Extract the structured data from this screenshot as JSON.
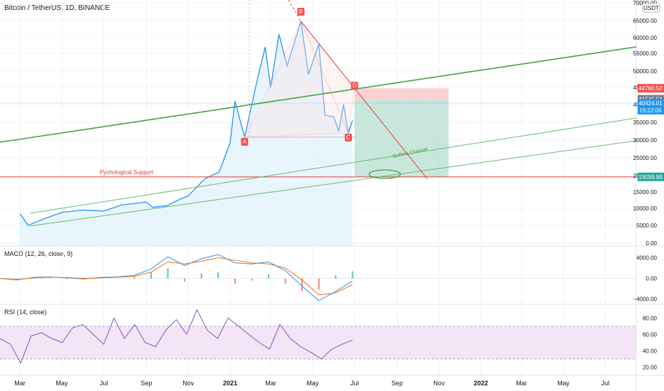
{
  "header": {
    "title": "Bitcoin / TetherUS, 1D, BINANCE",
    "currency": "USDT"
  },
  "colors": {
    "price": "#2196f3",
    "price_fill": "#e3f2fd",
    "pattern_line": "#f7a1a1",
    "trend_red": "#e53935",
    "trend_green": "#43a047",
    "channel_green": "#66bb6a",
    "support": "#e53935",
    "macd": "#2196f3",
    "signal": "#ff6d00",
    "hist_up": "#26a69a",
    "hist_down": "#ef5350",
    "rsi": "#7e57c2",
    "rsi_band": "#f3e5f5",
    "stop_zone": "#f8bdc0",
    "target_zone": "#a5d6c5"
  },
  "chart_data": [
    {
      "type": "line",
      "title": "Bitcoin / TetherUS, 1D, BINANCE",
      "y_scale": "log",
      "ylim": [
        0,
        70000
      ],
      "y_ticks": [
        0,
        5000,
        10000,
        15000,
        20000,
        25000,
        30000,
        35000,
        40000,
        45000,
        50000,
        55000,
        60000,
        65000,
        70000
      ],
      "y_tick_labels": [
        "0.00",
        "5000.00",
        "10000.00",
        "15000.00",
        "20000.00",
        "25000.00",
        "30000.00",
        "35000.00",
        "40000.00",
        "45000.00",
        "50000.00",
        "55000.00",
        "60000.00",
        "65000.00",
        "70000.00"
      ],
      "x_ticks": [
        "Mar",
        "May",
        "Jul",
        "Sep",
        "Nov",
        "2021",
        "Mar",
        "May",
        "Jul",
        "Sep",
        "Nov",
        "2022",
        "Mar",
        "May",
        "Jul"
      ],
      "series": [
        {
          "values": [
            [
              "2020-03-01",
              8500
            ],
            [
              "2020-03-13",
              5000
            ],
            [
              "2020-04-01",
              6600
            ],
            [
              "2020-05-01",
              8800
            ],
            [
              "2020-06-01",
              9500
            ],
            [
              "2020-07-01",
              9200
            ],
            [
              "2020-07-27",
              11000
            ],
            [
              "2020-09-01",
              11900
            ],
            [
              "2020-09-10",
              10300
            ],
            [
              "2020-10-01",
              10800
            ],
            [
              "2020-10-21",
              12900
            ],
            [
              "2020-11-01",
              13800
            ],
            [
              "2020-11-25",
              19000
            ],
            [
              "2020-12-16",
              21000
            ],
            [
              "2021-01-01",
              29300
            ],
            [
              "2021-01-08",
              41000
            ],
            [
              "2021-01-22",
              30800
            ],
            [
              "2021-02-08",
              46000
            ],
            [
              "2021-02-21",
              57000
            ],
            [
              "2021-03-01",
              45000
            ],
            [
              "2021-03-13",
              61000
            ],
            [
              "2021-03-25",
              51500
            ],
            [
              "2021-04-14",
              64800
            ],
            [
              "2021-04-25",
              49000
            ],
            [
              "2021-05-10",
              58000
            ],
            [
              "2021-05-19",
              37000
            ],
            [
              "2021-06-01",
              36500
            ],
            [
              "2021-06-08",
              32500
            ],
            [
              "2021-06-15",
              40000
            ],
            [
              "2021-06-22",
              32000
            ],
            [
              "2021-06-28",
              35500
            ]
          ]
        }
      ],
      "last_price": "40424.01",
      "countdown": "19:22:06",
      "price_labels": [
        {
          "value": 44760.52,
          "text": "44760.52",
          "color": "#ef5350"
        },
        {
          "value": 41545.56,
          "text": "41545.56",
          "color": "#787b86"
        },
        {
          "value": 19599.99,
          "text": "19599.99",
          "color": "#26a69a"
        }
      ],
      "pattern_points": [
        {
          "label": "A",
          "date": "2021-01-22",
          "value": 30800
        },
        {
          "label": "B",
          "date": "2021-04-14",
          "value": 64800
        },
        {
          "label": "C",
          "date": "2021-06-22",
          "value": 32000
        },
        {
          "label": "D",
          "date": "2021-07-01",
          "value": 44760
        }
      ],
      "annotations": [
        {
          "text": "Pychological Support",
          "value": 19599.99
        },
        {
          "text": "Buffalo Channel"
        }
      ]
    },
    {
      "type": "line",
      "title": "MACD (12, 26, close, 9)",
      "ylim": [
        -5000,
        6000
      ],
      "y_tick_labels": [
        "4000.00",
        "0.00",
        "−4000.00"
      ],
      "series": [
        {
          "name": "MACD",
          "values": [
            0,
            -300,
            200,
            300,
            100,
            -100,
            200,
            300,
            600,
            1800,
            4200,
            2500,
            3800,
            4600,
            3000,
            2800,
            3200,
            1500,
            -1500,
            -4300,
            -2500,
            -500
          ]
        },
        {
          "name": "Signal",
          "values": [
            0,
            -200,
            100,
            250,
            150,
            0,
            100,
            250,
            400,
            1200,
            3200,
            2800,
            3300,
            4000,
            3500,
            3000,
            2800,
            2000,
            -300,
            -3200,
            -2800,
            -1200
          ]
        }
      ]
    },
    {
      "type": "line",
      "title": "RSI (14, close)",
      "ylim": [
        10,
        95
      ],
      "y_tick_labels": [
        "80.00",
        "60.00",
        "40.00",
        "20.00"
      ],
      "bands": [
        30,
        70
      ],
      "series": [
        {
          "name": "RSI",
          "values": [
            55,
            48,
            25,
            58,
            62,
            55,
            50,
            68,
            72,
            60,
            48,
            80,
            55,
            72,
            50,
            45,
            65,
            78,
            60,
            90,
            65,
            55,
            80,
            70,
            60,
            50,
            42,
            72,
            55,
            45,
            38,
            30,
            42,
            48,
            53
          ]
        }
      ]
    }
  ]
}
